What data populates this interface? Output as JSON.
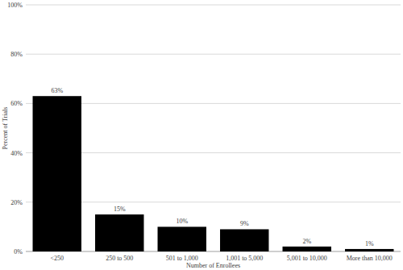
{
  "chart_data": {
    "type": "bar",
    "x_label": "Number of Enrollees",
    "y_label": "Percent of Trials",
    "categories": [
      "<250",
      "250 to 500",
      "501 to 1,000",
      "1,001 to 5,000",
      "5,001 to 10,000",
      "More than 10,000"
    ],
    "values": [
      63,
      15,
      10,
      9,
      2,
      1
    ],
    "value_labels": [
      "63%",
      "15%",
      "10%",
      "9%",
      "2%",
      "1%"
    ],
    "color": "#000000",
    "ylim": [
      0,
      100
    ],
    "yticks": [
      {
        "value": 0,
        "label": "0%"
      },
      {
        "value": 20,
        "label": "20%"
      },
      {
        "value": 40,
        "label": "40%"
      },
      {
        "value": 60,
        "label": "60%"
      },
      {
        "value": 80,
        "label": "80%"
      },
      {
        "value": 100,
        "label": "100%"
      }
    ],
    "grid": true,
    "data_labels": true
  }
}
